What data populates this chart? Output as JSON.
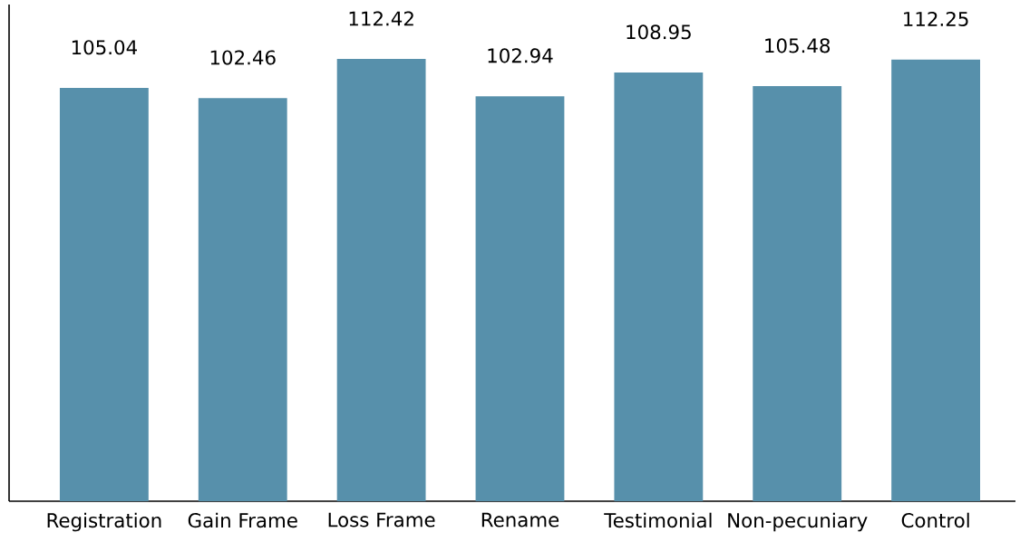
{
  "chart_data": {
    "type": "bar",
    "categories": [
      "Registration",
      "Gain Frame",
      "Loss Frame",
      "Rename",
      "Testimonial",
      "Non-pecuniary",
      "Control"
    ],
    "values": [
      105.04,
      102.46,
      112.42,
      102.94,
      108.95,
      105.48,
      112.25
    ],
    "color": "#5790ab",
    "data_labels": true
  }
}
